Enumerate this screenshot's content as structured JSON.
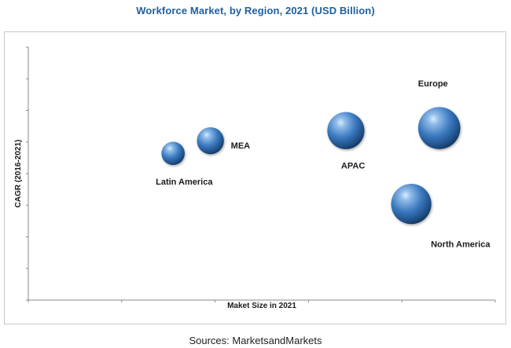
{
  "chart_data": {
    "type": "scatter",
    "title": "Workforce Market, by Region, 2021 (USD Billion)",
    "xlabel": "Maket Size in 2021",
    "ylabel": "CAGR (2016-2021)",
    "xlim": [
      0,
      1
    ],
    "ylim": [
      0,
      1
    ],
    "grid": false,
    "legend": "none",
    "bubble_color": "#3a78bf",
    "points": [
      {
        "label": "Latin America",
        "x": 0.31,
        "y": 0.58,
        "size": 0.37
      },
      {
        "label": "MEA",
        "x": 0.39,
        "y": 0.63,
        "size": 0.43
      },
      {
        "label": "APAC",
        "x": 0.68,
        "y": 0.67,
        "size": 0.59
      },
      {
        "label": "Europe",
        "x": 0.88,
        "y": 0.68,
        "size": 0.67
      },
      {
        "label": "North America",
        "x": 0.82,
        "y": 0.38,
        "size": 0.64
      }
    ]
  },
  "footer": {
    "source": "Sources: MarketsandMarkets"
  }
}
